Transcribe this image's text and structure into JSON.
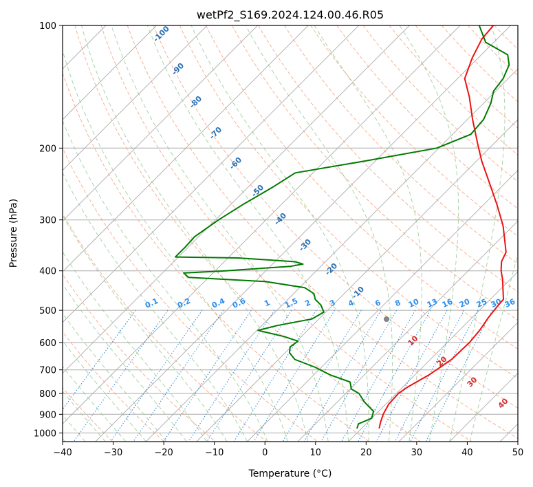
{
  "chart_data": {
    "type": "line",
    "subtype": "skew-t log-p diagram",
    "title": "wetPf2_S169.2024.124.00.46.R05",
    "xlabel": "Temperature (°C)",
    "ylabel": "Pressure (hPa)",
    "xlim": [
      -40,
      50
    ],
    "ylim": [
      1050,
      100
    ],
    "y_scale": "log",
    "x_ticks": [
      -40,
      -30,
      -20,
      -10,
      0,
      10,
      20,
      30,
      40,
      50
    ],
    "x_tick_labels": [
      "−40",
      "−30",
      "−20",
      "−10",
      "0",
      "10",
      "20",
      "30",
      "40",
      "50"
    ],
    "y_ticks": [
      100,
      200,
      300,
      400,
      500,
      600,
      700,
      800,
      900,
      1000
    ],
    "y_tick_labels": [
      "100",
      "200",
      "300",
      "400",
      "500",
      "600",
      "700",
      "800",
      "900",
      "1000"
    ],
    "grid": true,
    "series": [
      {
        "color": "#ee1111",
        "points": [
          [
            23.5,
            975
          ],
          [
            22.5,
            940
          ],
          [
            21.5,
            900
          ],
          [
            20.6,
            850
          ],
          [
            20.4,
            800
          ],
          [
            21.0,
            770
          ],
          [
            22.8,
            720
          ],
          [
            24.2,
            660
          ],
          [
            24.4,
            600
          ],
          [
            24.0,
            560
          ],
          [
            23.2,
            520
          ],
          [
            22.8,
            490
          ],
          [
            22.6,
            470
          ],
          [
            20.6,
            445
          ],
          [
            18.5,
            420
          ],
          [
            16.5,
            400
          ],
          [
            14.8,
            380
          ],
          [
            13.8,
            360
          ],
          [
            11.6,
            340
          ],
          [
            8.0,
            310
          ],
          [
            2.6,
            275
          ],
          [
            -3.8,
            240
          ],
          [
            -9.0,
            215
          ],
          [
            -13.2,
            195
          ],
          [
            -19.0,
            170
          ],
          [
            -24.0,
            150
          ],
          [
            -28.6,
            135
          ],
          [
            -31.2,
            120
          ],
          [
            -33.0,
            108
          ],
          [
            -33.4,
            100
          ]
        ]
      },
      {
        "color": "#007a00",
        "points": [
          [
            19.1,
            975
          ],
          [
            18.5,
            950
          ],
          [
            20.0,
            920
          ],
          [
            19.0,
            885
          ],
          [
            15.4,
            840
          ],
          [
            12.6,
            800
          ],
          [
            10.2,
            780
          ],
          [
            8.6,
            750
          ],
          [
            3.2,
            720
          ],
          [
            -1.2,
            690
          ],
          [
            -6.8,
            660
          ],
          [
            -9.2,
            635
          ],
          [
            -10.2,
            615
          ],
          [
            -9.8,
            595
          ],
          [
            -13.4,
            580
          ],
          [
            -19.8,
            560
          ],
          [
            -17.0,
            545
          ],
          [
            -11.4,
            525
          ],
          [
            -10.4,
            505
          ],
          [
            -12.4,
            485
          ],
          [
            -14.6,
            470
          ],
          [
            -16.0,
            455
          ],
          [
            -19.0,
            440
          ],
          [
            -28.0,
            425
          ],
          [
            -44.0,
            415
          ],
          [
            -45.8,
            405
          ],
          [
            -38.0,
            400
          ],
          [
            -26.0,
            390
          ],
          [
            -24.0,
            385
          ],
          [
            -26.0,
            380
          ],
          [
            -38.0,
            372
          ],
          [
            -50.6,
            370
          ],
          [
            -50.6,
            350
          ],
          [
            -50.8,
            330
          ],
          [
            -49.4,
            300
          ],
          [
            -47.6,
            275
          ],
          [
            -45.2,
            250
          ],
          [
            -43.5,
            230
          ],
          [
            -32.0,
            215
          ],
          [
            -20.4,
            200
          ],
          [
            -16.4,
            185
          ],
          [
            -16.8,
            170
          ],
          [
            -18.6,
            155
          ],
          [
            -20.4,
            145
          ],
          [
            -21.0,
            135
          ],
          [
            -22.5,
            125
          ],
          [
            -24.8,
            118
          ],
          [
            -31.6,
            110
          ],
          [
            -36.2,
            100
          ]
        ]
      }
    ],
    "dry_adiabat_labels": [
      "-100",
      "-90",
      "-80",
      "-70",
      "-60",
      "-50",
      "-40",
      "-30",
      "-20",
      "-10"
    ],
    "mixing_ratio_labels": [
      "0.1",
      "0.2",
      "0.4",
      "0.6",
      "1",
      "1.5",
      "2",
      "3",
      "4",
      "6",
      "8",
      "10",
      "13",
      "16",
      "20",
      "25",
      "30",
      "36"
    ],
    "moist_adiabat_labels": [
      "10",
      "20",
      "30",
      "40"
    ],
    "colors": {
      "isotherm": "#aaaaaa",
      "isobar": "#aaaaaa",
      "dry_adiabat": "#f4a582",
      "moist_adiabat": "#8cc68c",
      "mixing_ratio": "#3a8fd8",
      "dry_adiabat_label": "#2a6fb0",
      "mixing_ratio_label": "#2a8ff0",
      "moist_adiabat_label": "#d32f2f",
      "lcl_marker": "#888888"
    }
  }
}
